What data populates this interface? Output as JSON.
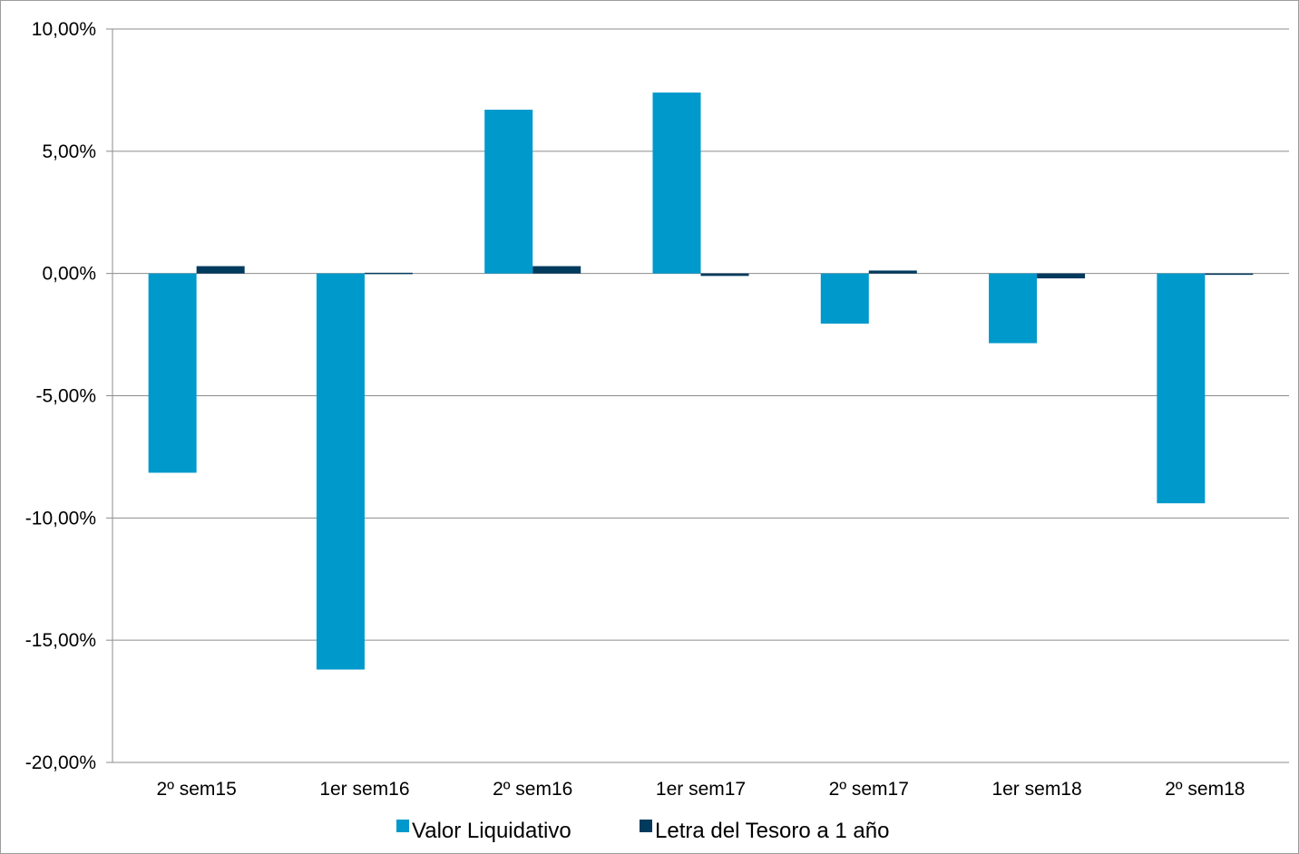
{
  "chart_data": {
    "type": "bar",
    "title": "",
    "xlabel": "",
    "ylabel": "",
    "categories": [
      "2º sem15",
      "1er sem16",
      "2º sem16",
      "1er sem17",
      "2º sem17",
      "1er sem18",
      "2º sem18"
    ],
    "series": [
      {
        "name": "Valor Liquidativo",
        "color": "#0099cc",
        "values": [
          -8.15,
          -16.2,
          6.7,
          7.4,
          -2.05,
          -2.85,
          -9.4
        ]
      },
      {
        "name": "Letra del Tesoro a 1 año",
        "color": "#003a5d",
        "values": [
          0.3,
          0.03,
          0.3,
          -0.1,
          0.12,
          -0.2,
          -0.05
        ]
      }
    ],
    "ylim": [
      -20,
      10
    ],
    "yticks": [
      10,
      5,
      0,
      -5,
      -10,
      -15,
      -20
    ],
    "ytick_labels": [
      "10,00%",
      "5,00%",
      "0,00%",
      "-5,00%",
      "-10,00%",
      "-15,00%",
      "-20,00%"
    ],
    "grid": true,
    "legend_position": "bottom"
  }
}
